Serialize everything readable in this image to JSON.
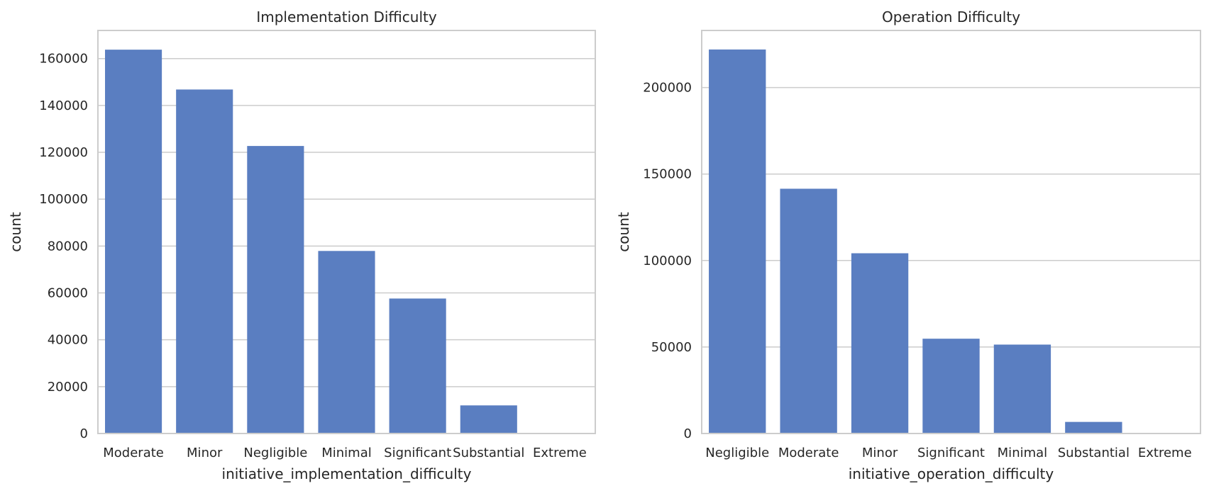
{
  "chart_data": [
    {
      "type": "bar",
      "title": "Implementation Difficulty",
      "xlabel": "initiative_implementation_difficulty",
      "ylabel": "count",
      "categories": [
        "Moderate",
        "Minor",
        "Negligible",
        "Minimal",
        "Significant",
        "Substantial",
        "Extreme"
      ],
      "values": [
        163800,
        146800,
        122700,
        77900,
        57600,
        12000,
        0
      ],
      "yticks": [
        0,
        20000,
        40000,
        60000,
        80000,
        100000,
        120000,
        140000,
        160000
      ],
      "ylim": [
        0,
        172000
      ],
      "grid": true,
      "bar_color": "#5a7ec1"
    },
    {
      "type": "bar",
      "title": "Operation Difficulty",
      "xlabel": "initiative_operation_difficulty",
      "ylabel": "count",
      "categories": [
        "Negligible",
        "Moderate",
        "Minor",
        "Significant",
        "Minimal",
        "Substantial",
        "Extreme"
      ],
      "values": [
        222000,
        141500,
        104200,
        54800,
        51400,
        6700,
        0
      ],
      "yticks": [
        0,
        50000,
        100000,
        150000,
        200000
      ],
      "ylim": [
        0,
        233000
      ],
      "grid": true,
      "bar_color": "#5a7ec1"
    }
  ]
}
